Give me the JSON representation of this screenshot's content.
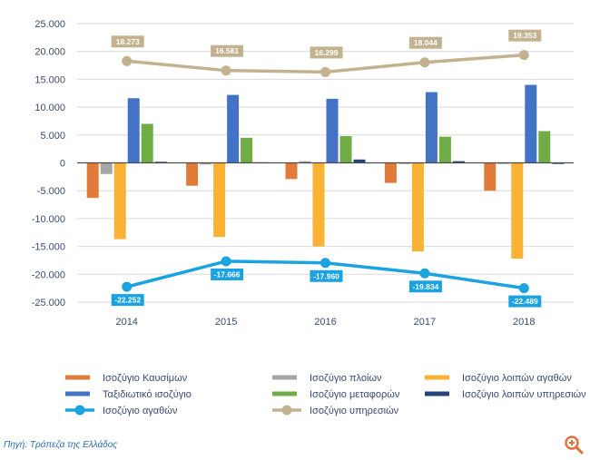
{
  "chart_data": {
    "type": "bar",
    "categories": [
      "2014",
      "2015",
      "2016",
      "2017",
      "2018"
    ],
    "ylim": [
      -25000,
      25000
    ],
    "yticks": [
      "25.000",
      "20.000",
      "15.000",
      "10.000",
      "5.000",
      "0",
      "-5.000",
      "-10.000",
      "-15.000",
      "-20.000",
      "-25.000"
    ],
    "grid": true,
    "legend_position": "bottom",
    "series": [
      {
        "name": "Ισοζύγιο Καυσίμων",
        "kind": "bar",
        "color": "#e07b39",
        "values": [
          -6300,
          -4100,
          -2900,
          -3600,
          -5000
        ]
      },
      {
        "name": "Ισοζύγιο πλοίων",
        "kind": "bar",
        "color": "#a6a6a6",
        "values": [
          -2000,
          -300,
          300,
          -200,
          -200
        ]
      },
      {
        "name": "Ισοζύγιο λοιπών αγαθών",
        "kind": "bar",
        "color": "#f9b233",
        "values": [
          -13700,
          -13300,
          -15000,
          -15900,
          -17200
        ]
      },
      {
        "name": "Ταξιδιωτικό ισοζύγιο",
        "kind": "bar",
        "color": "#4472c4",
        "values": [
          11600,
          12200,
          11500,
          12700,
          14000
        ]
      },
      {
        "name": "Ισοζύγιο μεταφορών",
        "kind": "bar",
        "color": "#70ad47",
        "values": [
          7000,
          4500,
          4800,
          4700,
          5700
        ]
      },
      {
        "name": "Ισοζύγιο λοιπών υπηρεσιών",
        "kind": "bar",
        "color": "#264478",
        "values": [
          200,
          100,
          600,
          300,
          -200
        ]
      },
      {
        "name": "Ισοζύγιο αγαθών",
        "kind": "line",
        "color": "#1aa3e0",
        "values": [
          -22252,
          -17666,
          -17960,
          -19834,
          -22489
        ],
        "labels": [
          "-22.252",
          "-17.666",
          "-17.960",
          "-19.834",
          "-22.489"
        ]
      },
      {
        "name": "Ισοζύγιο υπηρεσιών",
        "kind": "line",
        "color": "#c2b28f",
        "values": [
          18273,
          16581,
          16299,
          18044,
          19353
        ],
        "labels": [
          "18.273",
          "16.581",
          "16.299",
          "18.044",
          "19.353"
        ]
      }
    ]
  },
  "source": "Πηγή: Τράπεζα της Ελλάδος",
  "zoom_icon": "zoom-in-icon"
}
